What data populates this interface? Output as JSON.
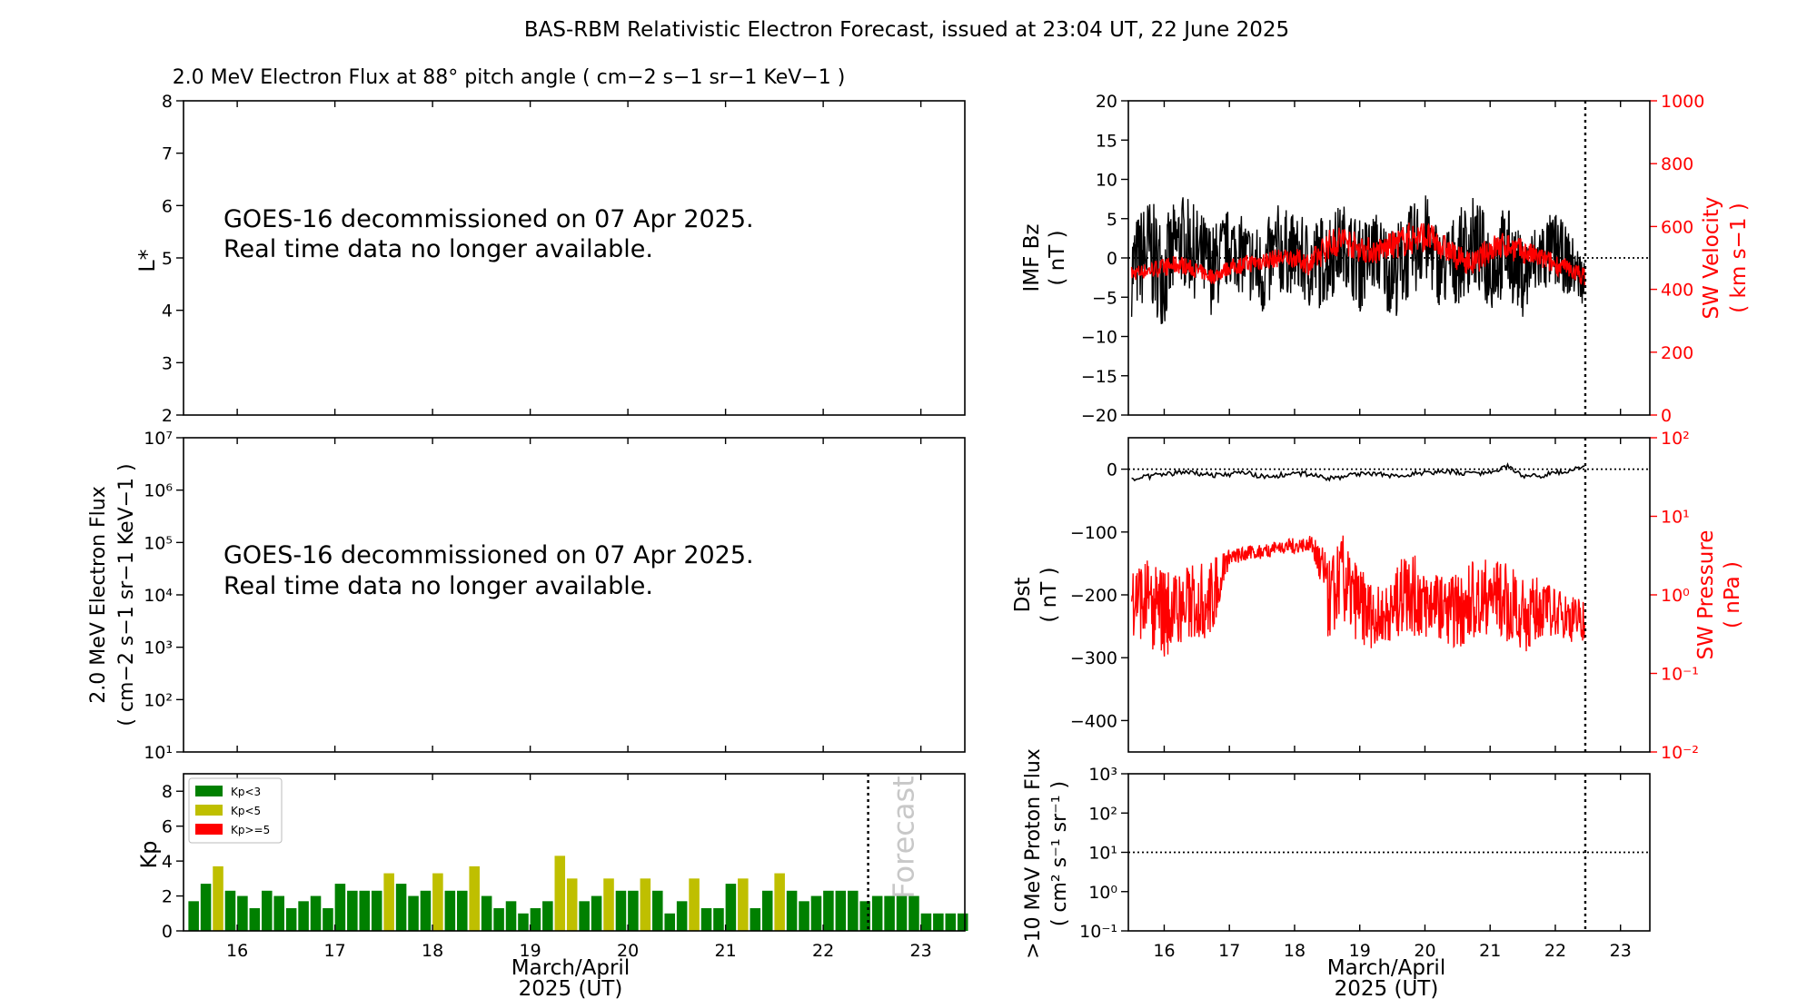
{
  "figure": {
    "title": "BAS-RBM Relativistic Electron Forecast, issued at 23:04 UT, 22 June 2025",
    "notice_line1": "GOES-16 decommissioned on 07 Apr 2025.",
    "notice_line2": "Real time data no longer available.",
    "xlabel_line1": "March/April",
    "xlabel_line2": "2025 (UT)",
    "forecast_label": "Forecast",
    "colors": {
      "bz": "#000000",
      "velocity": "#ff0000",
      "dst": "#000000",
      "pressure": "#ff0000",
      "kp_low": "#008000",
      "kp_mid": "#bfbf00",
      "kp_high": "#ff0000"
    }
  },
  "chart_data": [
    {
      "id": "lstar",
      "type": "heatmap",
      "title": "2.0 MeV Electron Flux at 88° pitch angle ( cm−2 s−1 sr−1 KeV−1 )",
      "ylabel": "L*",
      "ylim": [
        2,
        8
      ],
      "yticks": [
        "2",
        "3",
        "4",
        "5",
        "6",
        "7",
        "8"
      ],
      "xlim": [
        15.45,
        23.45
      ],
      "values": []
    },
    {
      "id": "electron_flux",
      "type": "line",
      "ylabel_line1": "2.0 MeV Electron Flux",
      "ylabel_line2": "( cm−2 s−1 sr−1 KeV−1 )",
      "yscale": "log",
      "ylim": [
        10,
        10000000
      ],
      "yticks": [
        "10¹",
        "10²",
        "10³",
        "10⁴",
        "10⁵",
        "10⁶",
        "10⁷"
      ],
      "xlim": [
        15.45,
        23.45
      ],
      "values": []
    },
    {
      "id": "kp",
      "type": "bar",
      "ylabel": "Kp",
      "ylim": [
        0,
        9
      ],
      "yticks": [
        "0",
        "2",
        "4",
        "6",
        "8"
      ],
      "xlim": [
        15.45,
        23.45
      ],
      "xticks": [
        "16",
        "17",
        "18",
        "19",
        "20",
        "21",
        "22",
        "23"
      ],
      "legend": [
        "Kp<3",
        "Kp<5",
        "Kp>=5"
      ],
      "legend_position": "top-left",
      "forecast_start": 22.46,
      "bin_hours": 3,
      "x_start": 15.5,
      "values": [
        1.7,
        2.7,
        3.7,
        2.3,
        2.0,
        1.3,
        2.3,
        2.0,
        1.3,
        1.7,
        2.0,
        1.3,
        2.7,
        2.3,
        2.3,
        2.3,
        3.3,
        2.7,
        2.0,
        2.3,
        3.3,
        2.3,
        2.3,
        3.7,
        2.0,
        1.3,
        1.7,
        1.0,
        1.3,
        1.7,
        4.3,
        3.0,
        1.7,
        2.0,
        3.0,
        2.3,
        2.3,
        3.0,
        2.3,
        1.0,
        1.7,
        3.0,
        1.3,
        1.3,
        2.7,
        3.0,
        1.3,
        2.3,
        3.3,
        2.3,
        1.7,
        2.0,
        2.3,
        2.3,
        2.3,
        1.7,
        2.0,
        2.0,
        2.0,
        2.0,
        1.0,
        1.0,
        1.0,
        1.0
      ]
    },
    {
      "id": "imf_sw",
      "type": "line",
      "ylabel_line1": "IMF Bz",
      "ylabel_line2": "( nT )",
      "ylim": [
        -20,
        20
      ],
      "yticks": [
        "−20",
        "−15",
        "−10",
        "−5",
        "0",
        "5",
        "10",
        "15",
        "20"
      ],
      "y2label_line1": "SW Velocity",
      "y2label_line2": "( km s−1 )",
      "y2lim": [
        0,
        1000
      ],
      "y2ticks": [
        "0",
        "200",
        "400",
        "600",
        "800",
        "1000"
      ],
      "xlim": [
        15.45,
        23.45
      ],
      "now": 22.46,
      "series": [
        {
          "name": "IMF Bz",
          "axis": "left",
          "x": [
            15.5,
            15.75,
            16.0,
            16.25,
            16.5,
            16.75,
            17.0,
            17.25,
            17.5,
            17.75,
            18.0,
            18.25,
            18.5,
            18.75,
            19.0,
            19.25,
            19.5,
            19.75,
            20.0,
            20.25,
            20.5,
            20.75,
            21.0,
            21.25,
            21.5,
            21.75,
            22.0,
            22.25,
            22.45
          ],
          "values": [
            -1.5,
            1.0,
            -2.0,
            2.5,
            0.5,
            -1.5,
            1.5,
            0.0,
            -2.0,
            1.0,
            0.5,
            -1.0,
            0.0,
            2.0,
            -1.0,
            1.0,
            -2.0,
            0.5,
            2.5,
            -1.5,
            0.0,
            2.0,
            -1.0,
            1.0,
            -2.5,
            0.0,
            1.0,
            -1.0,
            -3.0
          ],
          "envelope": [
            6,
            7,
            7,
            6,
            6,
            6,
            5,
            5,
            6,
            6,
            5,
            6,
            6,
            5,
            6,
            5,
            6,
            6,
            6,
            5,
            6,
            6,
            6,
            6,
            5,
            5,
            5,
            4,
            3
          ]
        },
        {
          "name": "SW Velocity",
          "axis": "right",
          "x": [
            15.5,
            15.75,
            16.0,
            16.25,
            16.5,
            16.75,
            17.0,
            17.25,
            17.5,
            17.75,
            18.0,
            18.25,
            18.5,
            18.75,
            19.0,
            19.25,
            19.5,
            19.75,
            20.0,
            20.25,
            20.5,
            20.75,
            21.0,
            21.25,
            21.5,
            21.75,
            22.0,
            22.25,
            22.45
          ],
          "values": [
            450,
            460,
            470,
            480,
            460,
            440,
            470,
            480,
            490,
            500,
            500,
            480,
            540,
            560,
            530,
            520,
            540,
            560,
            570,
            540,
            500,
            480,
            530,
            540,
            520,
            500,
            480,
            460,
            440
          ],
          "envelope": [
            25,
            25,
            30,
            30,
            25,
            25,
            25,
            30,
            30,
            30,
            30,
            40,
            50,
            50,
            45,
            40,
            45,
            55,
            50,
            45,
            40,
            40,
            45,
            45,
            40,
            35,
            35,
            30,
            30
          ]
        }
      ]
    },
    {
      "id": "dst_pressure",
      "type": "line",
      "ylabel_line1": "Dst",
      "ylabel_line2": "( nT )",
      "ylim": [
        -450,
        50
      ],
      "yticks": [
        "−400",
        "−300",
        "−200",
        "−100",
        "0"
      ],
      "y2label_line1": "SW Pressure",
      "y2label_line2": "( nPa )",
      "y2scale": "log",
      "y2lim": [
        0.01,
        100
      ],
      "y2ticks": [
        "10⁻²",
        "10⁻¹",
        "10⁰",
        "10¹",
        "10²"
      ],
      "xlim": [
        15.45,
        23.45
      ],
      "now": 22.46,
      "series": [
        {
          "name": "Dst",
          "axis": "left",
          "x": [
            15.5,
            15.75,
            16.0,
            16.25,
            16.5,
            16.75,
            17.0,
            17.25,
            17.5,
            17.75,
            18.0,
            18.25,
            18.5,
            18.75,
            19.0,
            19.25,
            19.5,
            19.75,
            20.0,
            20.25,
            20.5,
            20.75,
            21.0,
            21.25,
            21.5,
            21.75,
            22.0,
            22.25,
            22.45
          ],
          "values": [
            -15,
            -12,
            -8,
            -5,
            -6,
            -10,
            -8,
            -5,
            -12,
            -10,
            -6,
            -8,
            -15,
            -12,
            -8,
            -6,
            -10,
            -8,
            -6,
            -4,
            -5,
            -8,
            -6,
            5,
            -10,
            -12,
            -5,
            -2,
            5
          ]
        },
        {
          "name": "SW Pressure",
          "axis": "right",
          "x": [
            15.5,
            15.75,
            16.0,
            16.25,
            16.5,
            16.75,
            17.0,
            17.25,
            17.5,
            17.75,
            18.0,
            18.25,
            18.5,
            18.75,
            19.0,
            19.25,
            19.5,
            19.75,
            20.0,
            20.25,
            20.5,
            20.75,
            21.0,
            21.25,
            21.5,
            21.75,
            22.0,
            22.25,
            22.45
          ],
          "values": [
            1.0,
            0.8,
            0.6,
            0.7,
            0.8,
            0.9,
            3.0,
            3.3,
            3.6,
            4.0,
            4.2,
            4.5,
            0.8,
            1.5,
            0.7,
            0.5,
            0.6,
            1.2,
            0.8,
            0.7,
            0.6,
            0.9,
            1.0,
            0.8,
            0.5,
            0.7,
            0.6,
            0.5,
            0.5
          ],
          "envelope_log": [
            0.5,
            0.6,
            0.6,
            0.5,
            0.5,
            0.5,
            0.1,
            0.1,
            0.1,
            0.1,
            0.1,
            0.1,
            0.5,
            0.6,
            0.5,
            0.4,
            0.4,
            0.6,
            0.5,
            0.4,
            0.5,
            0.5,
            0.5,
            0.5,
            0.5,
            0.4,
            0.3,
            0.3,
            0.3
          ]
        }
      ]
    },
    {
      "id": "proton_flux",
      "type": "line",
      "ylabel_line1": ">10 MeV Proton Flux",
      "ylabel_line2": "( cm² s⁻¹ sr⁻¹ )",
      "yscale": "log",
      "ylim": [
        0.1,
        1000
      ],
      "yticks": [
        "10⁻¹",
        "10⁰",
        "10¹",
        "10²",
        "10³"
      ],
      "threshold": 10,
      "xlim": [
        15.45,
        23.45
      ],
      "xticks": [
        "16",
        "17",
        "18",
        "19",
        "20",
        "21",
        "22",
        "23"
      ],
      "now": 22.46,
      "values": []
    }
  ]
}
